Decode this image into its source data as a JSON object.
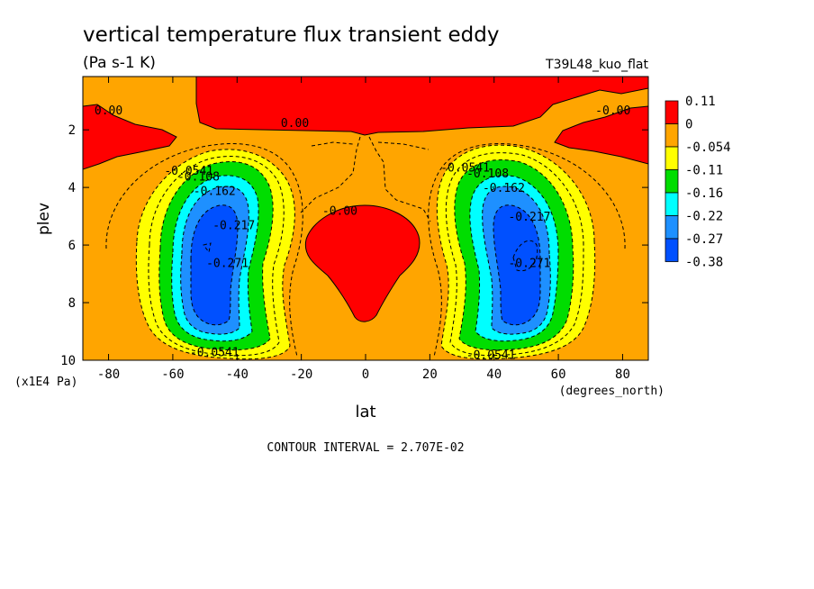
{
  "chart_data": {
    "type": "contour",
    "title": "vertical temperature flux transient eddy",
    "units": "(Pa s-1 K)",
    "run_label": "T39L48_kuo_flat",
    "xlabel": "lat",
    "x_units": "(degrees_north)",
    "ylabel": "plev",
    "y_units": "(x1E4 Pa)",
    "xlim": [
      -88,
      88
    ],
    "ylim": [
      10,
      0.15
    ],
    "x_ticks": [
      "-80",
      "-60",
      "-40",
      "-20",
      "0",
      "20",
      "40",
      "60",
      "80"
    ],
    "y_ticks": [
      "2",
      "4",
      "6",
      "8",
      "10"
    ],
    "contour_interval_text": "CONTOUR INTERVAL = 2.707E-02",
    "legend": {
      "position": "right",
      "levels": [
        "0.11",
        "0",
        "-0.054",
        "-0.11",
        "-0.16",
        "-0.22",
        "-0.27",
        "-0.38"
      ],
      "colors": [
        "#ff0000",
        "#ffa500",
        "#ffff00",
        "#00dd00",
        "#00ffff",
        "#1e90ff",
        "#0050ff"
      ]
    },
    "contour_labels": [
      {
        "text": "0.00",
        "lat": -80,
        "plev": 1.3
      },
      {
        "text": "0.00",
        "lat": -22,
        "plev": 1.75
      },
      {
        "text": "-0.00",
        "lat": 77,
        "plev": 1.3
      },
      {
        "text": "-0.0541",
        "lat": -55,
        "plev": 3.4
      },
      {
        "text": "-0.108",
        "lat": -52,
        "plev": 3.6
      },
      {
        "text": "-0.162",
        "lat": -47,
        "plev": 4.1
      },
      {
        "text": "-0.217",
        "lat": -41,
        "plev": 5.3
      },
      {
        "text": "-0.271",
        "lat": -43,
        "plev": 6.6
      },
      {
        "text": "-0.00",
        "lat": -8,
        "plev": 4.8
      },
      {
        "text": "-0.0541",
        "lat": 31,
        "plev": 3.3
      },
      {
        "text": "-0.108",
        "lat": 38,
        "plev": 3.5
      },
      {
        "text": "-0.162",
        "lat": 43,
        "plev": 4.0
      },
      {
        "text": "-0.217",
        "lat": 51,
        "plev": 5.0
      },
      {
        "text": "-0.271",
        "lat": 51,
        "plev": 6.6
      },
      {
        "text": "-0.0541",
        "lat": -47,
        "plev": 9.7
      },
      {
        "text": "-0.0541",
        "lat": 39,
        "plev": 9.8
      }
    ]
  }
}
